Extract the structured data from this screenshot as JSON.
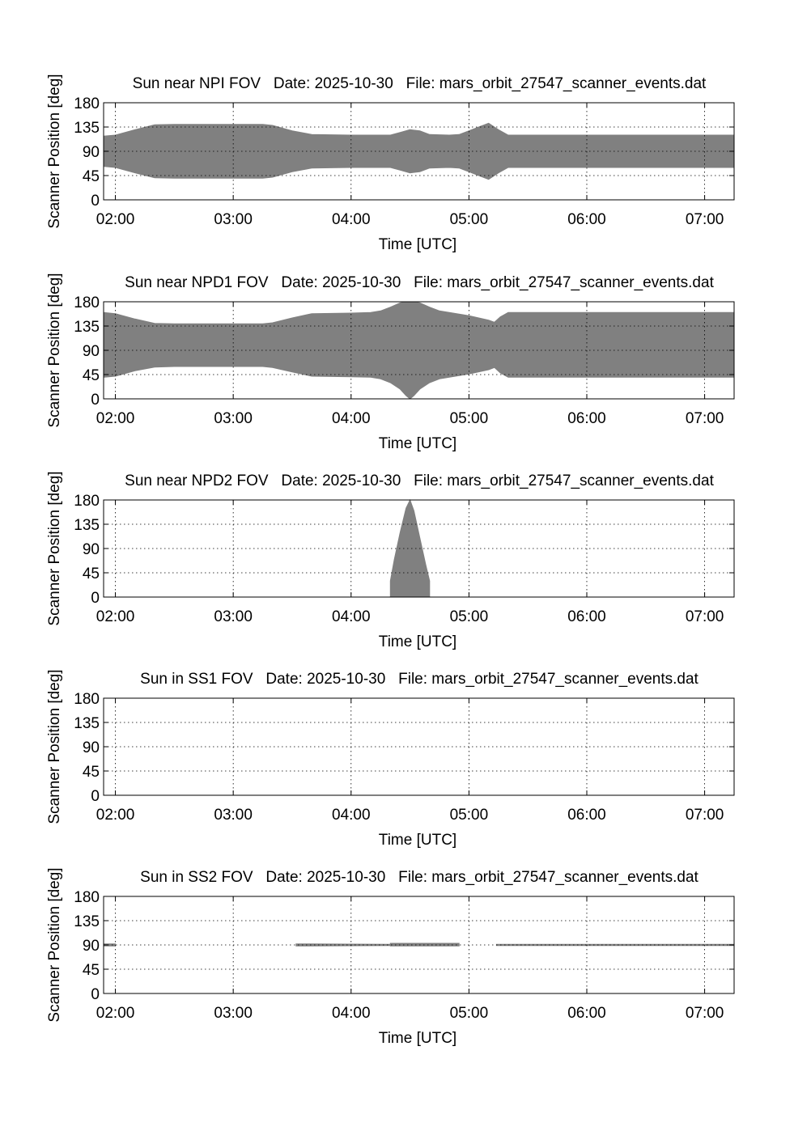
{
  "chart_data": [
    {
      "type": "area",
      "title": "Sun near NPI FOV   Date: 2025-10-30   File: mars_orbit_27547_scanner_events.dat",
      "xlabel": "Time [UTC]",
      "ylabel": "Scanner Position [deg]",
      "x_tick_labels": [
        "02:00",
        "03:00",
        "04:00",
        "05:00",
        "06:00",
        "07:00"
      ],
      "y_tick_labels": [
        "180",
        "135",
        "90",
        "45",
        "0"
      ],
      "ylim": [
        0,
        180
      ],
      "xlim": [
        "01:54",
        "07:15"
      ],
      "grid": true,
      "fill_color": "#808080",
      "bands": [
        {
          "x": [
            "01:54",
            "02:00",
            "02:10",
            "02:20",
            "02:30",
            "03:00",
            "03:15",
            "03:20",
            "03:30",
            "03:40",
            "04:00",
            "04:20",
            "04:25",
            "04:30",
            "04:35",
            "04:40",
            "04:50",
            "04:55",
            "05:00",
            "05:05",
            "05:10",
            "05:15",
            "05:20",
            "06:00",
            "07:00",
            "07:15"
          ],
          "upper": [
            118,
            120,
            130,
            139,
            140,
            140,
            140,
            138,
            128,
            121,
            120,
            120,
            125,
            130,
            128,
            121,
            120,
            121,
            128,
            135,
            142,
            130,
            120,
            120,
            120,
            120
          ],
          "lower": [
            62,
            60,
            50,
            41,
            40,
            40,
            40,
            42,
            52,
            59,
            60,
            60,
            55,
            50,
            52,
            59,
            60,
            59,
            52,
            45,
            38,
            50,
            60,
            60,
            60,
            60
          ]
        }
      ]
    },
    {
      "type": "area",
      "title": "Sun near NPD1 FOV   Date: 2025-10-30   File: mars_orbit_27547_scanner_events.dat",
      "xlabel": "Time [UTC]",
      "ylabel": "Scanner Position [deg]",
      "x_tick_labels": [
        "02:00",
        "03:00",
        "04:00",
        "05:00",
        "06:00",
        "07:00"
      ],
      "y_tick_labels": [
        "180",
        "135",
        "90",
        "45",
        "0"
      ],
      "ylim": [
        0,
        180
      ],
      "xlim": [
        "01:54",
        "07:15"
      ],
      "grid": true,
      "fill_color": "#808080",
      "bands": [
        {
          "x": [
            "01:54",
            "02:00",
            "02:10",
            "02:20",
            "02:30",
            "03:00",
            "03:15",
            "03:20",
            "03:30",
            "03:40",
            "04:00",
            "04:10",
            "04:15",
            "04:20",
            "04:25",
            "04:28",
            "04:30",
            "04:32",
            "04:35",
            "04:40",
            "04:45",
            "04:50",
            "05:00",
            "05:10",
            "05:13",
            "05:16",
            "05:20",
            "06:00",
            "07:00",
            "07:15"
          ],
          "upper": [
            160,
            158,
            148,
            140,
            139,
            139,
            139,
            141,
            150,
            158,
            159,
            160,
            163,
            170,
            178,
            180,
            180,
            180,
            178,
            170,
            163,
            160,
            154,
            146,
            142,
            152,
            160,
            160,
            160,
            160
          ],
          "lower": [
            40,
            42,
            52,
            59,
            60,
            60,
            60,
            58,
            50,
            42,
            41,
            40,
            37,
            30,
            18,
            6,
            0,
            6,
            18,
            30,
            37,
            40,
            46,
            54,
            58,
            48,
            40,
            40,
            40,
            40
          ]
        }
      ]
    },
    {
      "type": "area",
      "title": "Sun near NPD2 FOV   Date: 2025-10-30   File: mars_orbit_27547_scanner_events.dat",
      "xlabel": "Time [UTC]",
      "ylabel": "Scanner Position [deg]",
      "x_tick_labels": [
        "02:00",
        "03:00",
        "04:00",
        "05:00",
        "06:00",
        "07:00"
      ],
      "y_tick_labels": [
        "180",
        "135",
        "90",
        "45",
        "0"
      ],
      "ylim": [
        0,
        180
      ],
      "xlim": [
        "01:54",
        "07:15"
      ],
      "grid": true,
      "fill_color": "#808080",
      "bands": [
        {
          "x": [
            "04:20",
            "04:20",
            "04:22",
            "04:25",
            "04:28",
            "04:30",
            "04:32",
            "04:35",
            "04:38",
            "04:40",
            "04:40"
          ],
          "upper": [
            0,
            30,
            70,
            120,
            165,
            180,
            160,
            110,
            60,
            30,
            0
          ],
          "lower": [
            0,
            0,
            0,
            0,
            0,
            0,
            0,
            0,
            0,
            0,
            0
          ]
        }
      ]
    },
    {
      "type": "area",
      "title": "Sun in SS1 FOV   Date: 2025-10-30   File: mars_orbit_27547_scanner_events.dat",
      "xlabel": "Time [UTC]",
      "ylabel": "Scanner Position [deg]",
      "x_tick_labels": [
        "02:00",
        "03:00",
        "04:00",
        "05:00",
        "06:00",
        "07:00"
      ],
      "y_tick_labels": [
        "180",
        "135",
        "90",
        "45",
        "0"
      ],
      "ylim": [
        0,
        180
      ],
      "xlim": [
        "01:54",
        "07:15"
      ],
      "grid": true,
      "fill_color": "#808080",
      "bands": []
    },
    {
      "type": "area",
      "title": "Sun in SS2 FOV   Date: 2025-10-30   File: mars_orbit_27547_scanner_events.dat",
      "xlabel": "Time [UTC]",
      "ylabel": "Scanner Position [deg]",
      "x_tick_labels": [
        "02:00",
        "03:00",
        "04:00",
        "05:00",
        "06:00",
        "07:00"
      ],
      "y_tick_labels": [
        "180",
        "135",
        "90",
        "45",
        "0"
      ],
      "ylim": [
        0,
        180
      ],
      "xlim": [
        "01:54",
        "07:15"
      ],
      "grid": true,
      "fill_color": "#808080",
      "bands": [
        {
          "x": [
            "01:54",
            "02:00"
          ],
          "upper": [
            92,
            92
          ],
          "lower": [
            88,
            88
          ]
        },
        {
          "x": [
            "03:32",
            "04:20"
          ],
          "upper": [
            92,
            91
          ],
          "lower": [
            88,
            89
          ]
        },
        {
          "x": [
            "04:20",
            "04:55"
          ],
          "upper": [
            93,
            93
          ],
          "lower": [
            88,
            88
          ]
        },
        {
          "x": [
            "05:14",
            "07:15"
          ],
          "upper": [
            91,
            91
          ],
          "lower": [
            89,
            89
          ]
        }
      ]
    }
  ]
}
